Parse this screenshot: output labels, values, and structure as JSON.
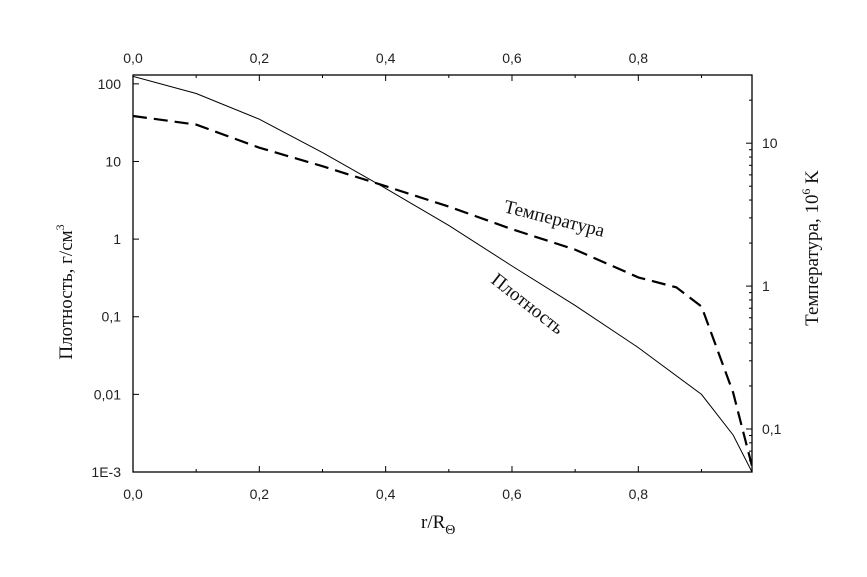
{
  "chart_data": {
    "type": "line",
    "x": {
      "label": "r/R",
      "label_subscript": "Θ",
      "range": [
        0.0,
        0.98
      ],
      "ticks": [
        0.0,
        0.2,
        0.4,
        0.6,
        0.8
      ],
      "tick_labels": [
        "0,0",
        "0,2",
        "0,4",
        "0,6",
        "0,8"
      ]
    },
    "y_left": {
      "label": "Плотность, г/см",
      "label_superscript": "3",
      "scale": "log",
      "range": [
        0.001,
        130
      ],
      "ticks": [
        0.001,
        0.01,
        0.1,
        1,
        10,
        100
      ],
      "tick_labels": [
        "1E-3",
        "0,01",
        "0,1",
        "1",
        "10",
        "100"
      ]
    },
    "y_right": {
      "label_pre": "Температура, 10",
      "label_superscript": "6",
      "label_post": " K",
      "scale": "log",
      "range": [
        0.05,
        30
      ],
      "ticks": [
        0.1,
        1,
        10
      ],
      "tick_labels": [
        "0,1",
        "1",
        "10"
      ]
    },
    "series": [
      {
        "name": "Плотность",
        "axis": "left",
        "style": "solid",
        "color": "#000000",
        "x": [
          0.0,
          0.1,
          0.2,
          0.3,
          0.4,
          0.5,
          0.6,
          0.7,
          0.8,
          0.9,
          0.95,
          0.98
        ],
        "y": [
          125,
          75,
          35,
          13,
          4.5,
          1.5,
          0.45,
          0.14,
          0.04,
          0.01,
          0.003,
          0.001
        ]
      },
      {
        "name": "Температура",
        "axis": "right",
        "style": "dashed",
        "color": "#000000",
        "x": [
          0.0,
          0.1,
          0.2,
          0.3,
          0.4,
          0.5,
          0.6,
          0.7,
          0.8,
          0.86,
          0.9,
          0.95,
          0.98
        ],
        "y": [
          15.5,
          13.5,
          9.3,
          6.9,
          5.0,
          3.6,
          2.5,
          1.8,
          1.15,
          0.98,
          0.72,
          0.18,
          0.055
        ]
      }
    ],
    "annotations": [
      {
        "text": "Температура",
        "series": "Температура"
      },
      {
        "text": "Плотность",
        "series": "Плотность"
      }
    ],
    "grid": false,
    "legend": "none"
  }
}
